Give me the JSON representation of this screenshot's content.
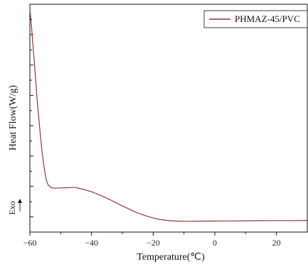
{
  "chart_data": {
    "type": "line",
    "xlabel": "Temperature(℃)",
    "ylabel": "Heat Flow(W/g)",
    "exo_label": "Exo",
    "xlim": [
      -60,
      30
    ],
    "x_ticks": [
      -60,
      -40,
      -20,
      0,
      20
    ],
    "y_ticks_visible": false,
    "grid": false,
    "legend_position": "top-right",
    "series": [
      {
        "name": "PHMAZ-45/PVC",
        "color": "#8b3a3a",
        "points": [
          [
            -60,
            9.3
          ],
          [
            -59.5,
            8.6
          ],
          [
            -59,
            7.8
          ],
          [
            -58.5,
            7.0
          ],
          [
            -58,
            6.1
          ],
          [
            -57.5,
            5.3
          ],
          [
            -57,
            4.6
          ],
          [
            -56.5,
            3.9
          ],
          [
            -56,
            3.3
          ],
          [
            -55.5,
            2.8
          ],
          [
            -55,
            2.4
          ],
          [
            -54.5,
            2.1
          ],
          [
            -54,
            1.95
          ],
          [
            -53,
            1.85
          ],
          [
            -52,
            1.83
          ],
          [
            -50,
            1.84
          ],
          [
            -48,
            1.85
          ],
          [
            -46,
            1.86
          ],
          [
            -45,
            1.86
          ],
          [
            -44,
            1.82
          ],
          [
            -42,
            1.76
          ],
          [
            -40,
            1.68
          ],
          [
            -38,
            1.58
          ],
          [
            -36,
            1.47
          ],
          [
            -34,
            1.35
          ],
          [
            -32,
            1.22
          ],
          [
            -30,
            1.09
          ],
          [
            -28,
            0.97
          ],
          [
            -26,
            0.85
          ],
          [
            -24,
            0.75
          ],
          [
            -22,
            0.66
          ],
          [
            -20,
            0.59
          ],
          [
            -18,
            0.53
          ],
          [
            -16,
            0.49
          ],
          [
            -14,
            0.47
          ],
          [
            -12,
            0.455
          ],
          [
            -10,
            0.45
          ],
          [
            -8,
            0.45
          ],
          [
            -6,
            0.455
          ],
          [
            -4,
            0.455
          ],
          [
            -2,
            0.46
          ],
          [
            0,
            0.46
          ],
          [
            5,
            0.465
          ],
          [
            10,
            0.47
          ],
          [
            15,
            0.475
          ],
          [
            20,
            0.48
          ],
          [
            25,
            0.48
          ],
          [
            30,
            0.485
          ]
        ]
      }
    ]
  }
}
